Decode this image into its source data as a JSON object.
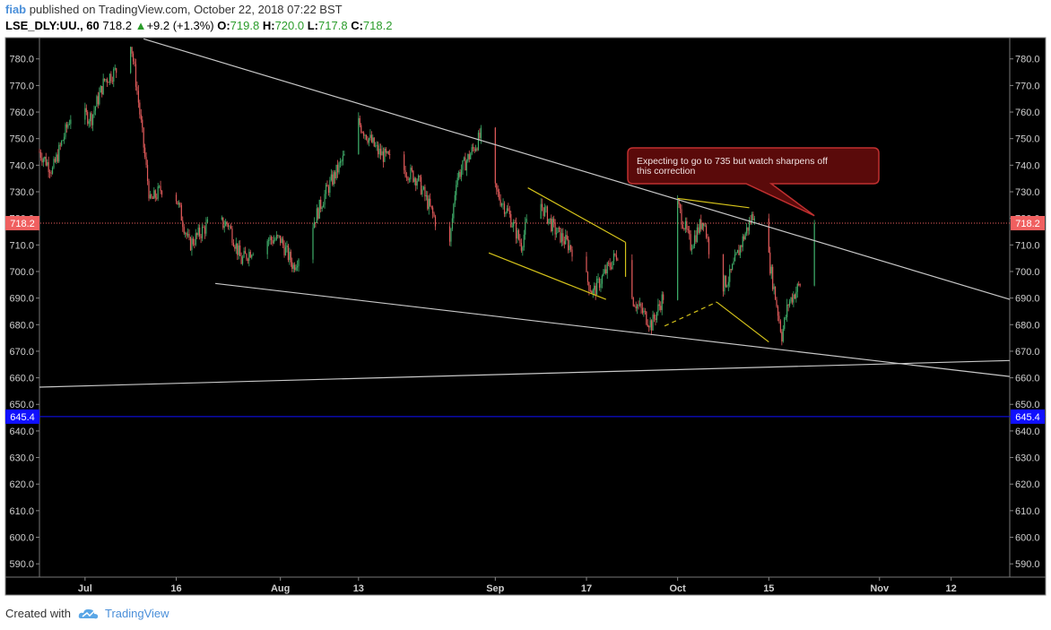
{
  "header": {
    "author": "fiab",
    "published_text": "published on TradingView.com, October 22, 2018 07:22 BST"
  },
  "ohlc": {
    "symbol": "LSE_DLY:UU., 60",
    "last": "718.2",
    "change_arrow": "▲",
    "change": "+9.2 (+1.3%)",
    "o_label": "O:",
    "o": "719.8",
    "h_label": "H:",
    "h": "720.0",
    "l_label": "L:",
    "l": "717.8",
    "c_label": "C:",
    "c": "718.2"
  },
  "footer": {
    "created_with": "Created with",
    "brand": "TradingView",
    "logo_icon": "tradingview-cloud-icon"
  },
  "colors": {
    "background": "#000000",
    "up_candle": "#3fae6a",
    "down_candle": "#e05a5a",
    "trendline": "#c8c8c8",
    "yellow_lines": "#d4c21a",
    "last_price": "#f06060",
    "support_line": "#1010ff",
    "callout_fill": "#5a0a0a",
    "callout_border": "#c03030"
  },
  "chart_data": {
    "type": "candlestick",
    "ylim": [
      585,
      788
    ],
    "y_ticks": [
      590,
      600,
      610,
      620,
      630,
      640,
      650,
      660,
      670,
      680,
      690,
      700,
      710,
      720,
      730,
      740,
      750,
      760,
      770,
      780
    ],
    "y_tick_labels": [
      "590.0",
      "600.0",
      "610.0",
      "620.0",
      "630.0",
      "640.0",
      "650.0",
      "660.0",
      "670.0",
      "680.0",
      "690.0",
      "700.0",
      "710.0",
      "720.0",
      "730.0",
      "740.0",
      "750.0",
      "760.0",
      "770.0",
      "780.0"
    ],
    "x_range": [
      "2018-06-25",
      "2018-11-21"
    ],
    "x_ticks": [
      {
        "date": "2018-07-02",
        "label": "Jul"
      },
      {
        "date": "2018-07-16",
        "label": "16"
      },
      {
        "date": "2018-08-01",
        "label": "Aug"
      },
      {
        "date": "2018-08-13",
        "label": "13"
      },
      {
        "date": "2018-09-03",
        "label": "Sep"
      },
      {
        "date": "2018-09-17",
        "label": "17"
      },
      {
        "date": "2018-10-01",
        "label": "Oct"
      },
      {
        "date": "2018-10-15",
        "label": "15"
      },
      {
        "date": "2018-11-01",
        "label": "Nov"
      },
      {
        "date": "2018-11-12",
        "label": "12"
      }
    ],
    "price_path": [
      [
        "2018-06-25",
        745
      ],
      [
        "2018-06-27",
        738
      ],
      [
        "2018-06-30",
        760
      ],
      [
        "2018-07-03",
        758
      ],
      [
        "2018-07-05",
        772
      ],
      [
        "2018-07-07",
        776
      ],
      [
        "2018-07-09",
        787
      ],
      [
        "2018-07-10",
        768
      ],
      [
        "2018-07-12",
        726
      ],
      [
        "2018-07-14",
        732
      ],
      [
        "2018-07-15",
        745
      ],
      [
        "2018-07-16",
        728
      ],
      [
        "2018-07-18",
        710
      ],
      [
        "2018-07-21",
        718
      ],
      [
        "2018-07-24",
        718
      ],
      [
        "2018-07-26",
        704
      ],
      [
        "2018-07-29",
        712
      ],
      [
        "2018-08-01",
        712
      ],
      [
        "2018-08-03",
        702
      ],
      [
        "2018-08-05",
        712
      ],
      [
        "2018-08-08",
        730
      ],
      [
        "2018-08-11",
        744
      ],
      [
        "2018-08-13",
        756
      ],
      [
        "2018-08-16",
        745
      ],
      [
        "2018-08-19",
        740
      ],
      [
        "2018-08-22",
        735
      ],
      [
        "2018-08-25",
        718
      ],
      [
        "2018-08-27",
        710
      ],
      [
        "2018-08-28",
        735
      ],
      [
        "2018-09-01",
        752
      ],
      [
        "2018-09-02",
        735
      ],
      [
        "2018-09-05",
        722
      ],
      [
        "2018-09-07",
        710
      ],
      [
        "2018-09-09",
        730
      ],
      [
        "2018-09-12",
        716
      ],
      [
        "2018-09-15",
        708
      ],
      [
        "2018-09-18",
        692
      ],
      [
        "2018-09-20",
        700
      ],
      [
        "2018-09-22",
        708
      ],
      [
        "2018-09-24",
        690
      ],
      [
        "2018-09-27",
        680
      ],
      [
        "2018-09-29",
        692
      ],
      [
        "2018-10-01",
        725
      ],
      [
        "2018-10-03",
        710
      ],
      [
        "2018-10-05",
        720
      ],
      [
        "2018-10-07",
        692
      ],
      [
        "2018-10-09",
        698
      ],
      [
        "2018-10-11",
        712
      ],
      [
        "2018-10-13",
        724
      ],
      [
        "2018-10-15",
        705
      ],
      [
        "2018-10-17",
        676
      ],
      [
        "2018-10-18",
        688
      ],
      [
        "2018-10-20",
        696
      ],
      [
        "2018-10-21",
        706
      ],
      [
        "2018-10-22",
        718
      ]
    ],
    "trendlines": [
      {
        "name": "upper-resistance",
        "color": "trendline",
        "from": [
          "2018-07-11",
          787.5
        ],
        "to": [
          "2018-11-21",
          689.5
        ]
      },
      {
        "name": "lower-support",
        "color": "trendline",
        "from": [
          "2018-07-22",
          695.5
        ],
        "to": [
          "2018-11-21",
          660.5
        ]
      },
      {
        "name": "long-base",
        "color": "trendline",
        "from": [
          "2018-06-25",
          656.5
        ],
        "to": [
          "2018-11-21",
          666.5
        ]
      },
      {
        "name": "channel-top",
        "color": "yellow_lines",
        "from": [
          "2018-09-08",
          731.5
        ],
        "to": [
          "2018-09-23",
          711.0
        ]
      },
      {
        "name": "channel-bottom",
        "color": "yellow_lines",
        "from": [
          "2018-09-02",
          707.0
        ],
        "to": [
          "2018-09-20",
          689.5
        ]
      },
      {
        "name": "channel-right",
        "color": "yellow_lines",
        "from": [
          "2018-09-23",
          711.0
        ],
        "to": [
          "2018-09-23",
          698.0
        ]
      },
      {
        "name": "wedge-top",
        "color": "yellow_lines",
        "from": [
          "2018-10-01",
          727.5
        ],
        "to": [
          "2018-10-12",
          724.0
        ]
      },
      {
        "name": "wedge-bottom",
        "color": "yellow_lines",
        "from": [
          "2018-10-07",
          688.5
        ],
        "to": [
          "2018-10-15",
          673.5
        ]
      },
      {
        "name": "dashed-link",
        "color": "yellow_lines",
        "dashed": true,
        "from": [
          "2018-09-29",
          679.5
        ],
        "to": [
          "2018-10-07",
          688.5
        ]
      }
    ],
    "horizontal_lines": [
      {
        "name": "last-price",
        "value": 718.2,
        "label": "718.2",
        "color": "last_price",
        "dotted": true
      },
      {
        "name": "support-level",
        "value": 645.4,
        "label": "645.4",
        "color": "support_line",
        "dotted": false
      }
    ],
    "annotation": {
      "text": "Expecting to go to 735 but watch sharpens off this correction",
      "pointer": [
        "2018-10-22",
        721
      ]
    }
  }
}
